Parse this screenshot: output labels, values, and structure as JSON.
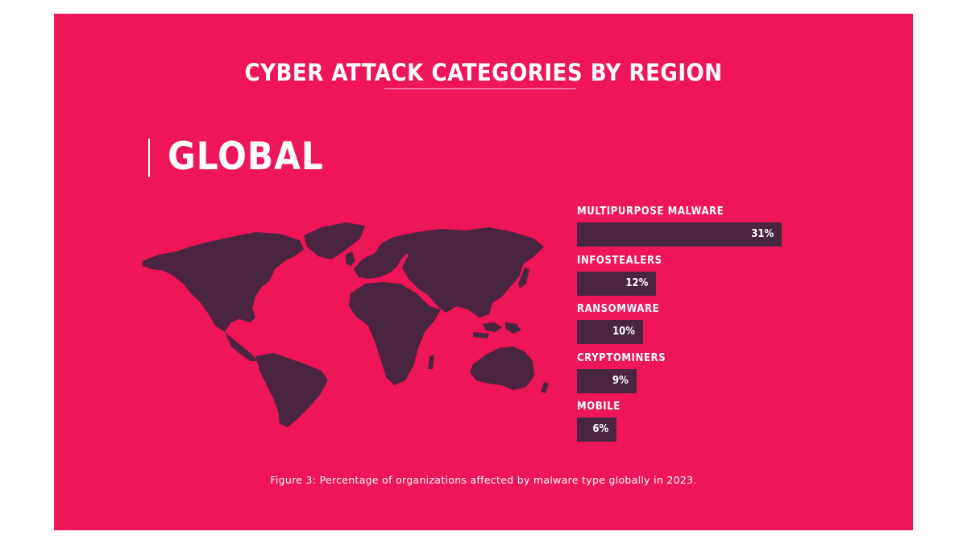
{
  "colors": {
    "background": "#ee1559",
    "bar": "#4a2540",
    "map": "#4a2540",
    "text": "#ffffff"
  },
  "header": {
    "title": "CYBER ATTACK CATEGORIES BY REGION",
    "region": "GLOBAL"
  },
  "map": {
    "icon": "world-map"
  },
  "chart_data": {
    "type": "bar",
    "orientation": "horizontal",
    "categories": [
      "MULTIPURPOSE MALWARE",
      "INFOSTEALERS",
      "RANSOMWARE",
      "CRYPTOMINERS",
      "MOBILE"
    ],
    "values": [
      31,
      12,
      10,
      9,
      6
    ],
    "value_labels": [
      "31%",
      "12%",
      "10%",
      "9%",
      "6%"
    ],
    "unit": "%",
    "grid": false,
    "legend": "none"
  },
  "caption": "Figure 3: Percentage of organizations affected by malware type globally in 2023."
}
